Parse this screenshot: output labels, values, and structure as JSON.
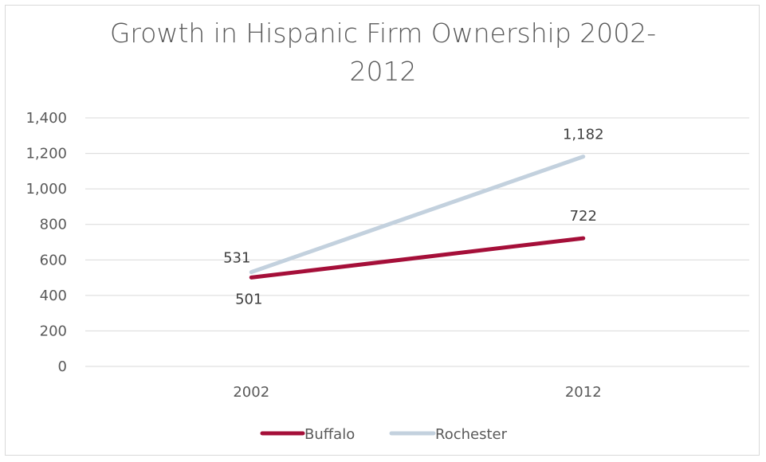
{
  "colors": {
    "buffalo": "#a50f39",
    "rochester": "#c3d1de",
    "grid": "#d9d9d9",
    "text": "#595959"
  },
  "chart_data": {
    "type": "line",
    "title": "Growth in Hispanic Firm Ownership 2002-2012",
    "categories": [
      "2002",
      "2012"
    ],
    "series": [
      {
        "name": "Buffalo",
        "values": [
          501,
          722
        ],
        "labels": [
          "501",
          "722"
        ]
      },
      {
        "name": "Rochester",
        "values": [
          531,
          1182
        ],
        "labels": [
          "531",
          "1,182"
        ]
      }
    ],
    "ylim": [
      0,
      1400
    ],
    "yticks": [
      0,
      200,
      400,
      600,
      800,
      1000,
      1200,
      1400
    ],
    "ytick_labels": [
      "0",
      "200",
      "400",
      "600",
      "800",
      "1,000",
      "1,200",
      "1,400"
    ],
    "grid": true,
    "legend_position": "bottom"
  }
}
